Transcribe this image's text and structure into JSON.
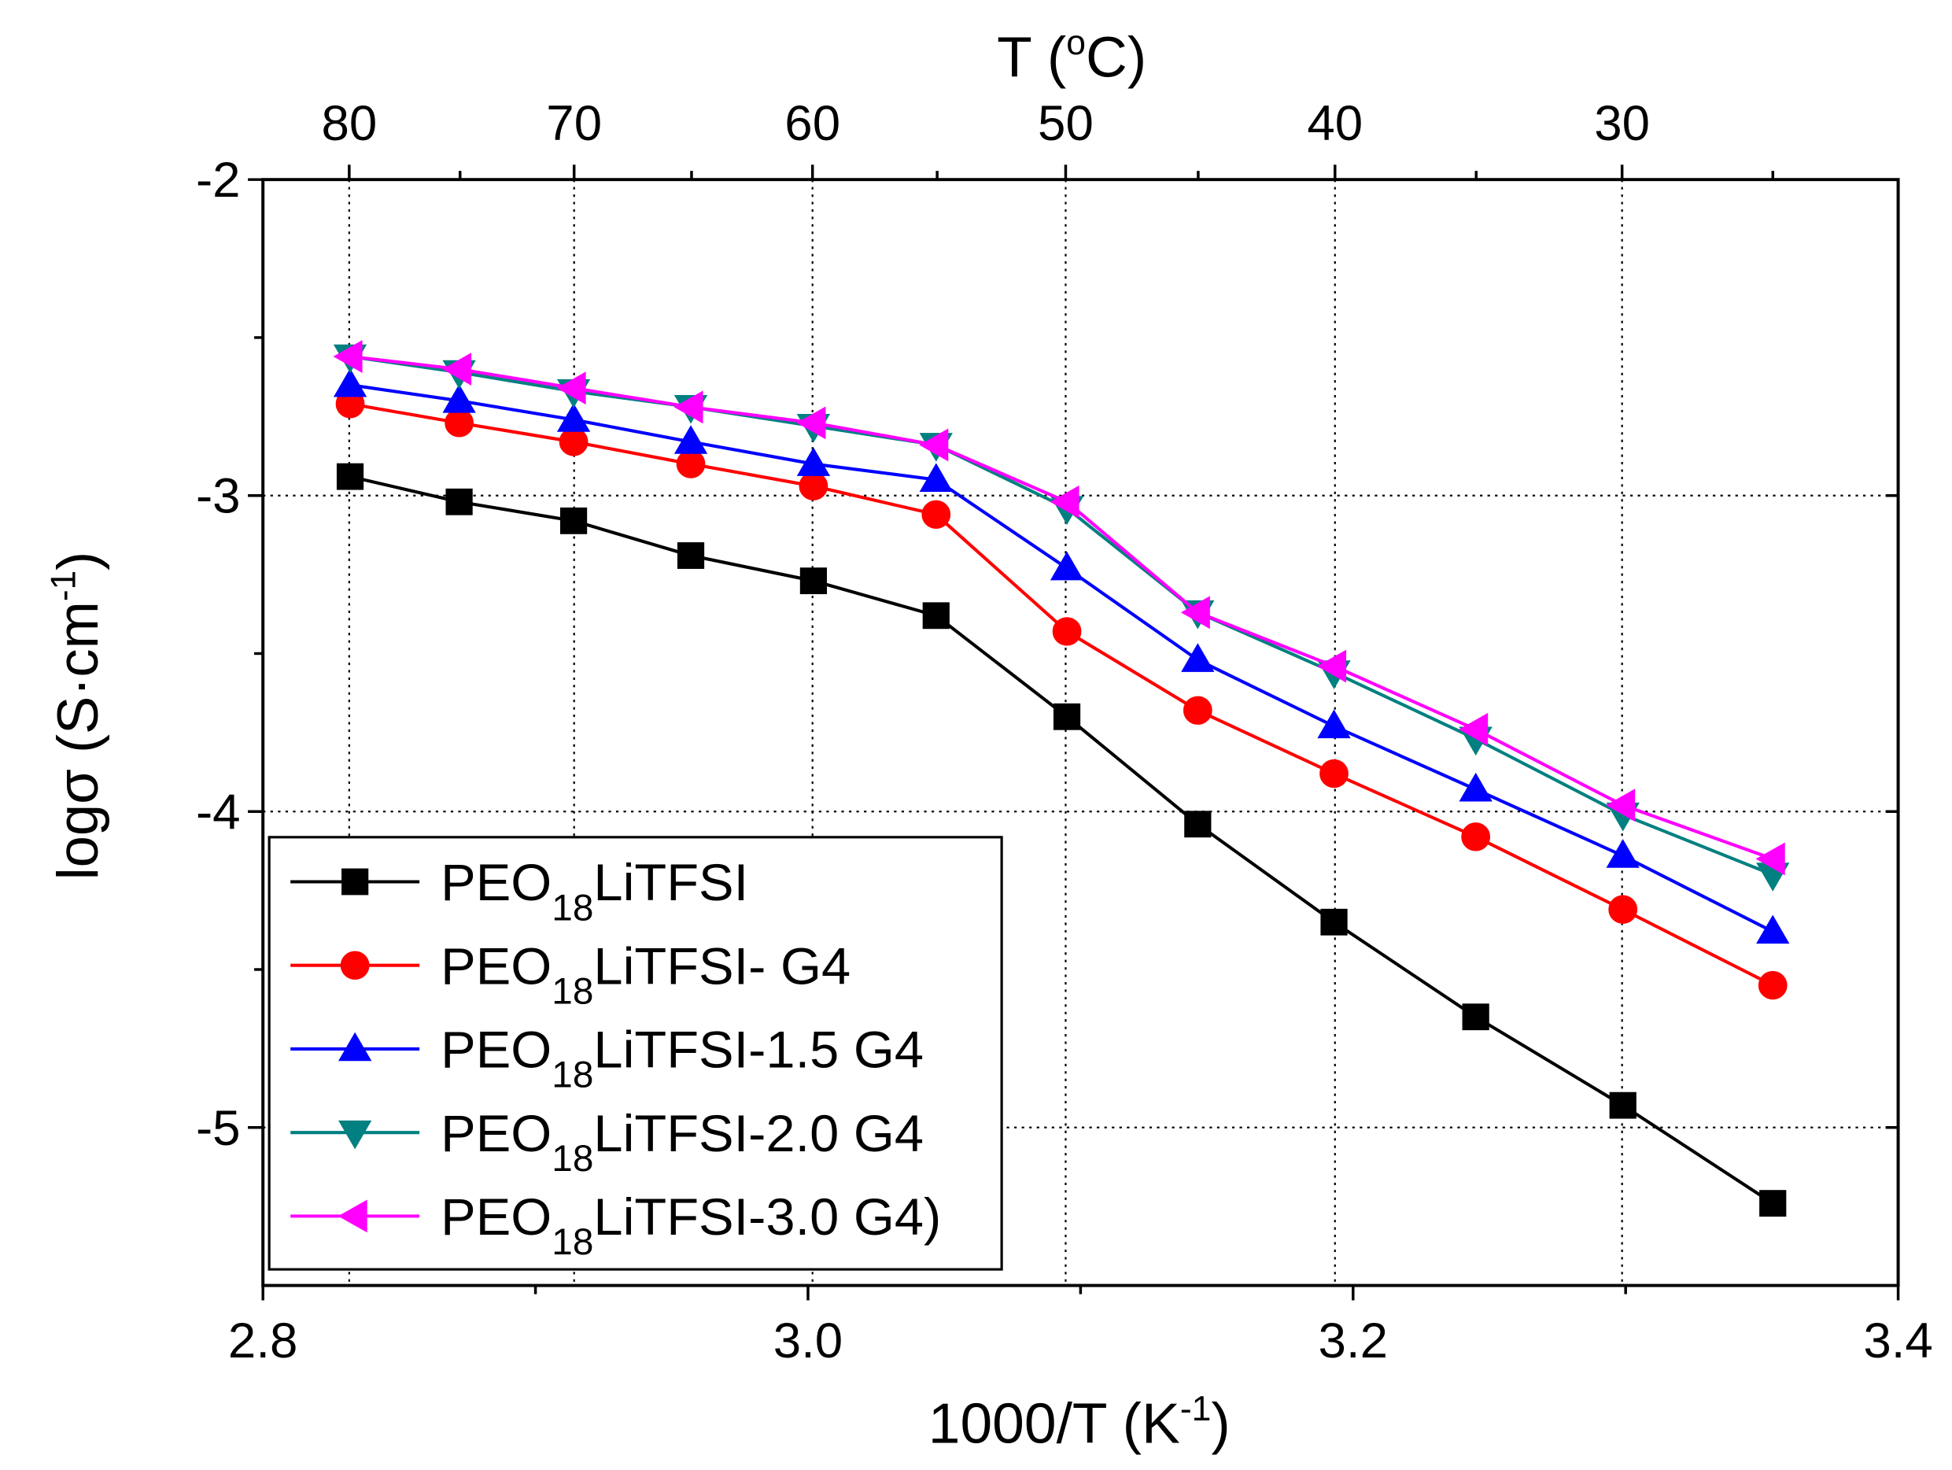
{
  "chart_data": {
    "type": "line",
    "title": "",
    "xlabel": {
      "main": "1000/T (K",
      "sup": "-1",
      "end": ")"
    },
    "ylabel": {
      "main": "logσ (S·cm",
      "sup": "-1",
      "end": ")"
    },
    "top_axis": {
      "label": {
        "main": "T (",
        "sup": "o",
        "end": "C)"
      },
      "ticks_celsius": [
        80,
        70,
        60,
        50,
        40,
        30
      ],
      "tick_labels": [
        "80",
        "70",
        "60",
        "50",
        "40",
        "30"
      ]
    },
    "xlim": [
      2.8,
      3.4
    ],
    "ylim": [
      -5.5,
      -2
    ],
    "xticks": {
      "values": [
        2.8,
        3.0,
        3.2,
        3.4
      ],
      "labels": [
        "2.8",
        "3.0",
        "3.2",
        "3.4"
      ]
    },
    "yticks": {
      "values": [
        -2,
        -3,
        -4,
        -5
      ],
      "labels": [
        "-2",
        "-3",
        "-4",
        "-5"
      ]
    },
    "grid": true,
    "legend_position": "bottom-left",
    "x": [
      2.832,
      2.872,
      2.914,
      2.957,
      3.002,
      3.047,
      3.095,
      3.143,
      3.193,
      3.245,
      3.299,
      3.354
    ],
    "series": [
      {
        "label": {
          "main": "PEO",
          "sub": "18",
          "rest": "LiTFSI"
        },
        "color": "#000000",
        "marker": "square",
        "values": [
          -2.94,
          -3.02,
          -3.08,
          -3.19,
          -3.27,
          -3.38,
          -3.7,
          -4.04,
          -4.35,
          -4.65,
          -4.93,
          -5.24
        ]
      },
      {
        "label": {
          "main": "PEO",
          "sub": "18",
          "rest": "LiTFSI- G4"
        },
        "color": "#ff0000",
        "marker": "circle",
        "values": [
          -2.71,
          -2.77,
          -2.83,
          -2.9,
          -2.97,
          -3.06,
          -3.43,
          -3.68,
          -3.88,
          -4.08,
          -4.31,
          -4.55
        ]
      },
      {
        "label": {
          "main": "PEO",
          "sub": "18",
          "rest": "LiTFSI-1.5 G4"
        },
        "color": "#0000ff",
        "marker": "triangle-up",
        "values": [
          -2.65,
          -2.7,
          -2.76,
          -2.83,
          -2.9,
          -2.95,
          -3.23,
          -3.52,
          -3.73,
          -3.93,
          -4.14,
          -4.38
        ]
      },
      {
        "label": {
          "main": "PEO",
          "sub": "18",
          "rest": "LiTFSI-2.0 G4"
        },
        "color": "#008080",
        "marker": "triangle-down",
        "values": [
          -2.56,
          -2.61,
          -2.67,
          -2.72,
          -2.78,
          -2.84,
          -3.04,
          -3.37,
          -3.56,
          -3.77,
          -4.01,
          -4.2
        ]
      },
      {
        "label": {
          "main": "PEO",
          "sub": "18",
          "rest": "LiTFSI-3.0 G4)"
        },
        "color": "#ff00ff",
        "marker": "triangle-left",
        "values": [
          -2.56,
          -2.6,
          -2.66,
          -2.72,
          -2.77,
          -2.84,
          -3.02,
          -3.37,
          -3.54,
          -3.74,
          -3.98,
          -4.15
        ]
      }
    ]
  }
}
